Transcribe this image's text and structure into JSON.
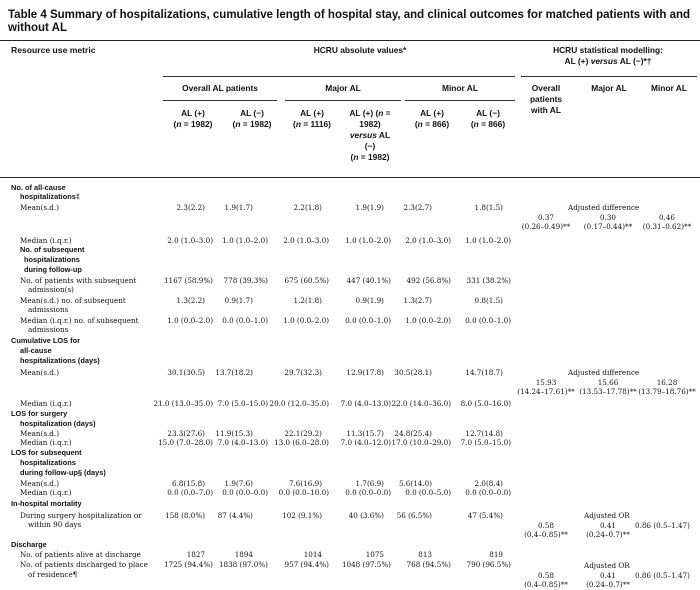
{
  "title": "Table 4 Summary of hospitalizations, cumulative length of hospital stay, and clinical outcomes for matched patients with and without AL",
  "header": {
    "col0": "Resource use metric",
    "hcru": "HCRU absolute values*",
    "model1": "HCRU statistical modelling:",
    "model2": "AL (+) versus AL (−)*†",
    "overall": "Overall AL patients",
    "major": "Major AL",
    "minor": "Minor AL",
    "m_overall": "Overall patients with AL",
    "m_major": "Major AL",
    "m_minor": "Minor AL",
    "sub": [
      "AL (+) (n = 1982)",
      "AL (−) (n = 1982)",
      "AL (+) (n = 1116)",
      "AL (+) (n = 1982) versus AL (−) (n = 1982)",
      "AL (+) (n = 866)",
      "AL (−) (n = 866)"
    ]
  },
  "rows": {
    "allcause_title": "No. of all-cause hospitalizations‡",
    "mean_lbl": "Mean(s.d.)",
    "median_lbl": "Median (i.q.r.)",
    "allcause_mean": [
      "2.3(2.2)",
      "1.9(1.7)",
      "2.2(1.8)",
      "1.9(1.9)",
      "2.3(2.7)",
      "1.8(1.5)"
    ],
    "allcause_median": [
      "2.0 (1.0–3.0)",
      "1.0 (1.0–2.0)",
      "2.0 (1.0–3.0)",
      "1.0 (1.0–2.0)",
      "2.0 (1.0–3.0)",
      "1.0 (1.0–2.0)"
    ],
    "adj_diff": "Adjusted difference",
    "allcause_model": [
      "0.37 (0.26–0.49)**",
      "0.30 (0.17–0.44)**",
      "0.46 (0.31–0.62)**"
    ],
    "subseq_title": "No. of subsequent hospitalizations during follow-up",
    "subseq_pct_lbl": "No. of patients with subsequent admission(s)",
    "subseq_pct": [
      "1167 (58.9%)",
      "778 (39.3%)",
      "675 (60.5%)",
      "447 (40.1%)",
      "492 (56.8%)",
      "331 (38.2%)"
    ],
    "subseq_mean_lbl": "Mean(s.d.) no. of subsequent admissions",
    "subseq_mean": [
      "1.3(2.2)",
      "0.9(1.7)",
      "1.2(1.8)",
      "0.9(1.9)",
      "1.3(2.7)",
      "0.8(1.5)"
    ],
    "subseq_median_lbl": "Median (i.q.r.) no. of subsequent admissions",
    "subseq_median": [
      "1.0 (0.0–2.0)",
      "0.0 (0.0–1.0)",
      "1.0 (0.0–2.0)",
      "0.0 (0.0–1.0)",
      "1.0 (0.0–2.0)",
      "0.0 (0.0–1.0)"
    ],
    "los_title": "Cumulative LOS for all-cause hospitalizations (days)",
    "los_mean": [
      "30.1(30.5)",
      "13.7(18.2)",
      "29.7(32.3)",
      "12.9(17.8)",
      "30.5(28.1)",
      "14.7(18.7)"
    ],
    "los_median": [
      "21.0 (13.0–35.0)",
      "7.0 (5.0–15.0)",
      "20.0 (12.0–35.0)",
      "7.0 (4.0–13.0)",
      "22.0 (14.0–36.0)",
      "8.0 (5.0–16.0)"
    ],
    "los_model": [
      "15.93 (14.24–17.61)**",
      "15.66 (13.53–17.78)**",
      "16.28 (13.79–18.76)**"
    ],
    "surg_title": "LOS for surgery hospitalization (days)",
    "surg_mean": [
      "23.3(27.6)",
      "11.9(15.3)",
      "22.1(29.2)",
      "11.3(15.7)",
      "24.8(25.4)",
      "12.7(14.8)"
    ],
    "surg_median": [
      "15.0 (7.0–28.0)",
      "7.0 (4.0–13.0)",
      "13.0 (6.0–28.0)",
      "7.0 (4.0–12.0)",
      "17.0 (10.0–29.0)",
      "7.0 (5.0–15.0)"
    ],
    "fu_title": "LOS for subsequent hospitalizations during follow-up§ (days)",
    "fu_mean": [
      "6.8(15.8)",
      "1.9(7.6)",
      "7.6(16.9)",
      "1.7(6.9)",
      "5.6(14.0)",
      "2.0(8.4)"
    ],
    "fu_median": [
      "0.0 (0.0–7.0)",
      "0.0 (0.0–0.0)",
      "0.0 (0.0–10.0)",
      "0.0 (0.0–0.0)",
      "0.0 (0.0–5.0)",
      "0.0 (0.0–0.0)"
    ],
    "mort_title": "In-hospital mortality",
    "mort_lbl": "During surgery hospitalization or within 90 days",
    "mort_vals": [
      "158 (8.0%)",
      "87 (4.4%)",
      "102 (9.1%)",
      "40 (3.6%)",
      "56 (6.5%)",
      "47 (5.4%)"
    ],
    "adj_or": "Adjusted OR",
    "mort_model": [
      "0.58 (0.4–0.85)**",
      "0.41 (0.24–0.7)**",
      "0.86 (0.5–1.47)"
    ],
    "disc_title": "Discharge",
    "alive_lbl": "No. of patients alive at discharge",
    "alive_vals": [
      "1827",
      "1894",
      "1014",
      "1075",
      "813",
      "819"
    ],
    "place_lbl": "No. of patients discharged to place of residence¶",
    "place_vals": [
      "1725 (94.4%)",
      "1838 (97.0%)",
      "957 (94.4%)",
      "1048 (97.5%)",
      "768 (94.5%)",
      "790 (96.5%)"
    ],
    "place_model": [
      "0.58 (0.4–0.85)**",
      "0.41 (0.24–0.7)**",
      "0.86 (0.5–1.47)"
    ]
  }
}
